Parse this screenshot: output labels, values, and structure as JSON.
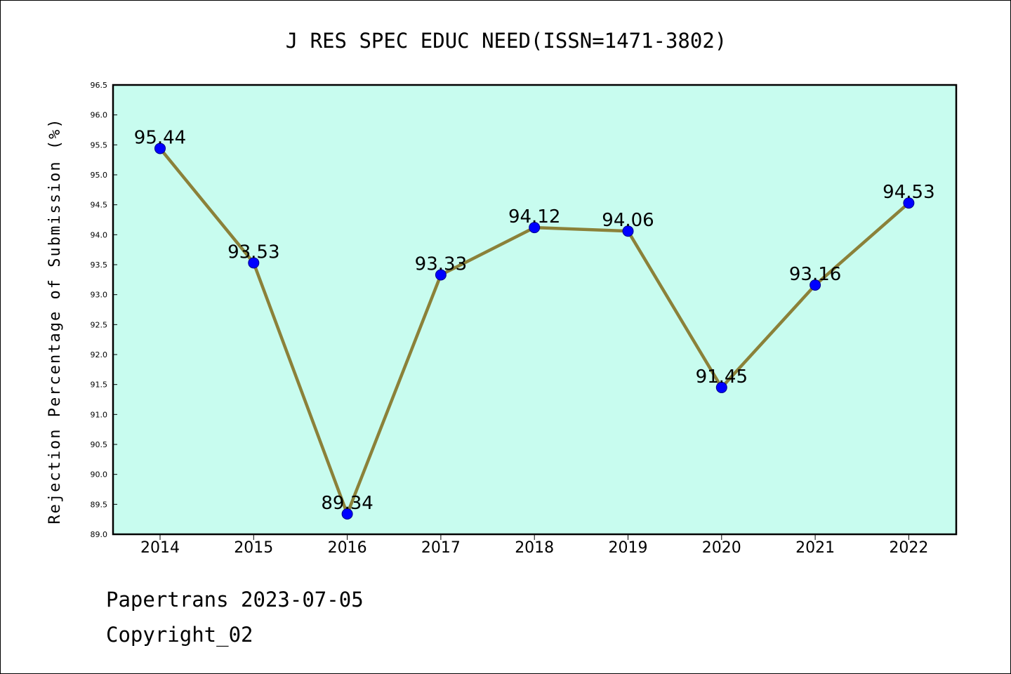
{
  "chart_data": {
    "type": "line",
    "title": "J RES SPEC EDUC NEED(ISSN=1471-3802)",
    "xlabel": "",
    "ylabel": "Rejection Percentage of Submission (%)",
    "categories": [
      "2014",
      "2015",
      "2016",
      "2017",
      "2018",
      "2019",
      "2020",
      "2021",
      "2022"
    ],
    "series": [
      {
        "values": [
          95.44,
          93.53,
          89.34,
          93.33,
          94.12,
          94.06,
          91.45,
          93.16,
          94.53
        ],
        "labels": [
          "95.44",
          "93.53",
          "89.34",
          "93.33",
          "94.12",
          "94.06",
          "91.45",
          "93.16",
          "94.53"
        ]
      }
    ],
    "ylim": [
      89.0,
      96.5
    ],
    "yticks": [
      "89.0",
      "89.5",
      "90.0",
      "90.5",
      "91.0",
      "91.5",
      "92.0",
      "92.5",
      "93.0",
      "93.5",
      "94.0",
      "94.5",
      "95.0",
      "95.5",
      "96.0",
      "96.5"
    ],
    "grid": false,
    "legend": "none",
    "colors": {
      "plot_background": "#c8fcef",
      "line": "#8b8139",
      "marker": "#0000ff",
      "marker_edge": "#00008b"
    }
  },
  "footer": {
    "date_line": "Papertrans 2023-07-05",
    "copyright": "Copyright_02"
  }
}
